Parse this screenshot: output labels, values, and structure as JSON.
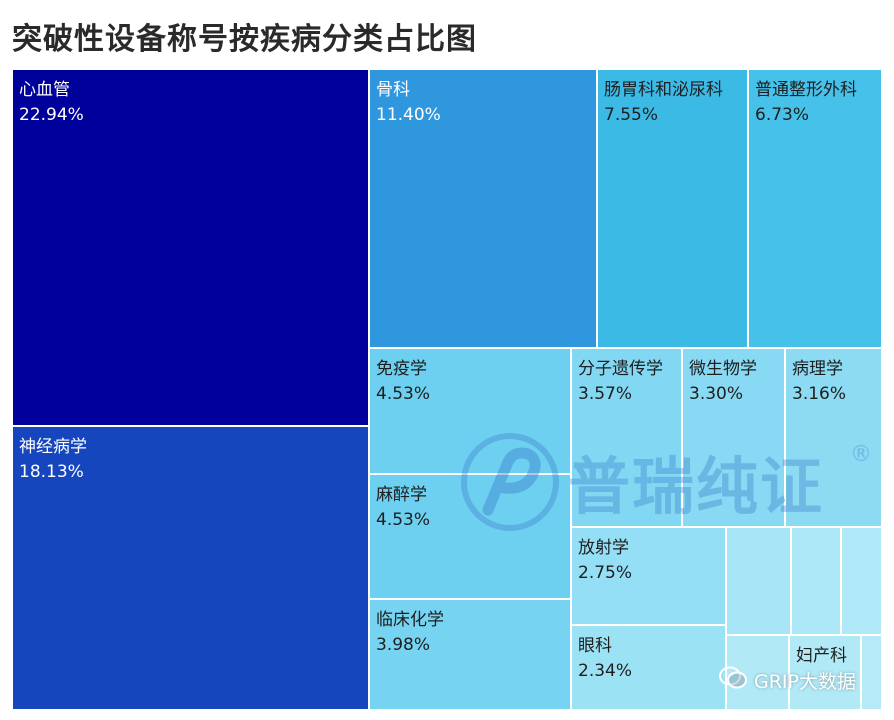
{
  "title": "突破性设备称号按疾病分类占比图",
  "chart_data": {
    "type": "treemap",
    "unit": "%",
    "items": [
      {
        "label": "心血管",
        "value": 22.94,
        "value_text": "22.94%",
        "color": "#00009a"
      },
      {
        "label": "神经病学",
        "value": 18.13,
        "value_text": "18.13%",
        "color": "#1646be"
      },
      {
        "label": "骨科",
        "value": 11.4,
        "value_text": "11.40%",
        "color": "#2f97dd"
      },
      {
        "label": "肠胃科和泌尿科",
        "value": 7.55,
        "value_text": "7.55%",
        "color": "#3cbae6"
      },
      {
        "label": "普通整形外科",
        "value": 6.73,
        "value_text": "6.73%",
        "color": "#46c1ea"
      },
      {
        "label": "免疫学",
        "value": 4.53,
        "value_text": "4.53%",
        "color": "#6dd0f0"
      },
      {
        "label": "麻醉学",
        "value": 4.53,
        "value_text": "4.53%",
        "color": "#6dd0f0"
      },
      {
        "label": "临床化学",
        "value": 3.98,
        "value_text": "3.98%",
        "color": "#76d3f1"
      },
      {
        "label": "分子遗传学",
        "value": 3.57,
        "value_text": "3.57%",
        "color": "#82d7f2"
      },
      {
        "label": "微生物学",
        "value": 3.3,
        "value_text": "3.30%",
        "color": "#88d9f3"
      },
      {
        "label": "病理学",
        "value": 3.16,
        "value_text": "3.16%",
        "color": "#8ddbf3"
      },
      {
        "label": "放射学",
        "value": 2.75,
        "value_text": "2.75%",
        "color": "#94dff5"
      },
      {
        "label": "眼科",
        "value": 2.34,
        "value_text": "2.34%",
        "color": "#9ce2f5"
      },
      {
        "label": "",
        "value": null,
        "value_text": "",
        "color": "#a8e5f6"
      },
      {
        "label": "",
        "value": null,
        "value_text": "",
        "color": "#ace7f7"
      },
      {
        "label": "",
        "value": null,
        "value_text": "",
        "color": "#b0e9f7"
      },
      {
        "label": "",
        "value": null,
        "value_text": "",
        "color": "#b2e9f7"
      },
      {
        "label": "妇产科",
        "value": null,
        "value_text": "",
        "color": "#b2e9f7"
      },
      {
        "label": "",
        "value": null,
        "value_text": "",
        "color": "#b6eaf8"
      }
    ]
  },
  "watermark": {
    "text": "普瑞纯证",
    "mark": "®"
  },
  "badge": {
    "text": "GRIP大数据",
    "icon": "wechat-icon"
  }
}
